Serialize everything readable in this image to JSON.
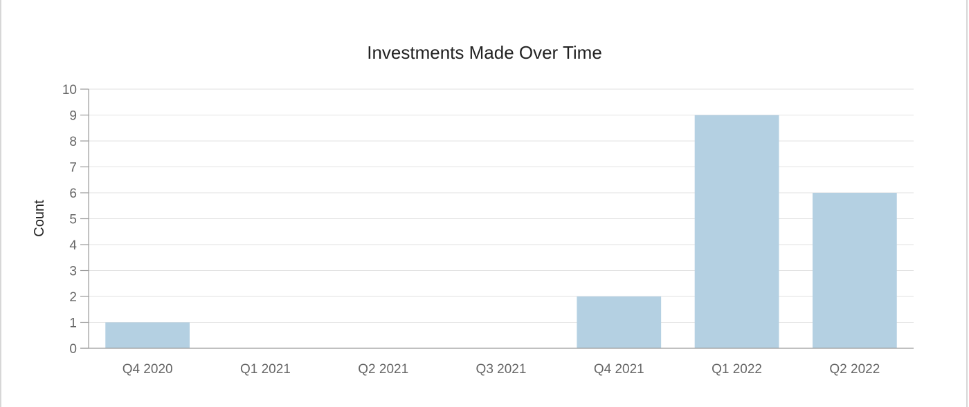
{
  "chart_data": {
    "type": "bar",
    "title": "Investments Made Over Time",
    "xlabel": "",
    "ylabel": "Count",
    "categories": [
      "Q4 2020",
      "Q1 2021",
      "Q2 2021",
      "Q3 2021",
      "Q4 2021",
      "Q1 2022",
      "Q2 2022"
    ],
    "values": [
      1,
      0,
      0,
      0,
      2,
      9,
      6
    ],
    "ylim": [
      0,
      10
    ],
    "yticks": [
      "0",
      "1",
      "2",
      "3",
      "4",
      "5",
      "6",
      "7",
      "8",
      "9",
      "10"
    ],
    "grid": true,
    "legend": "none",
    "bar_color": "#b4d0e2"
  }
}
